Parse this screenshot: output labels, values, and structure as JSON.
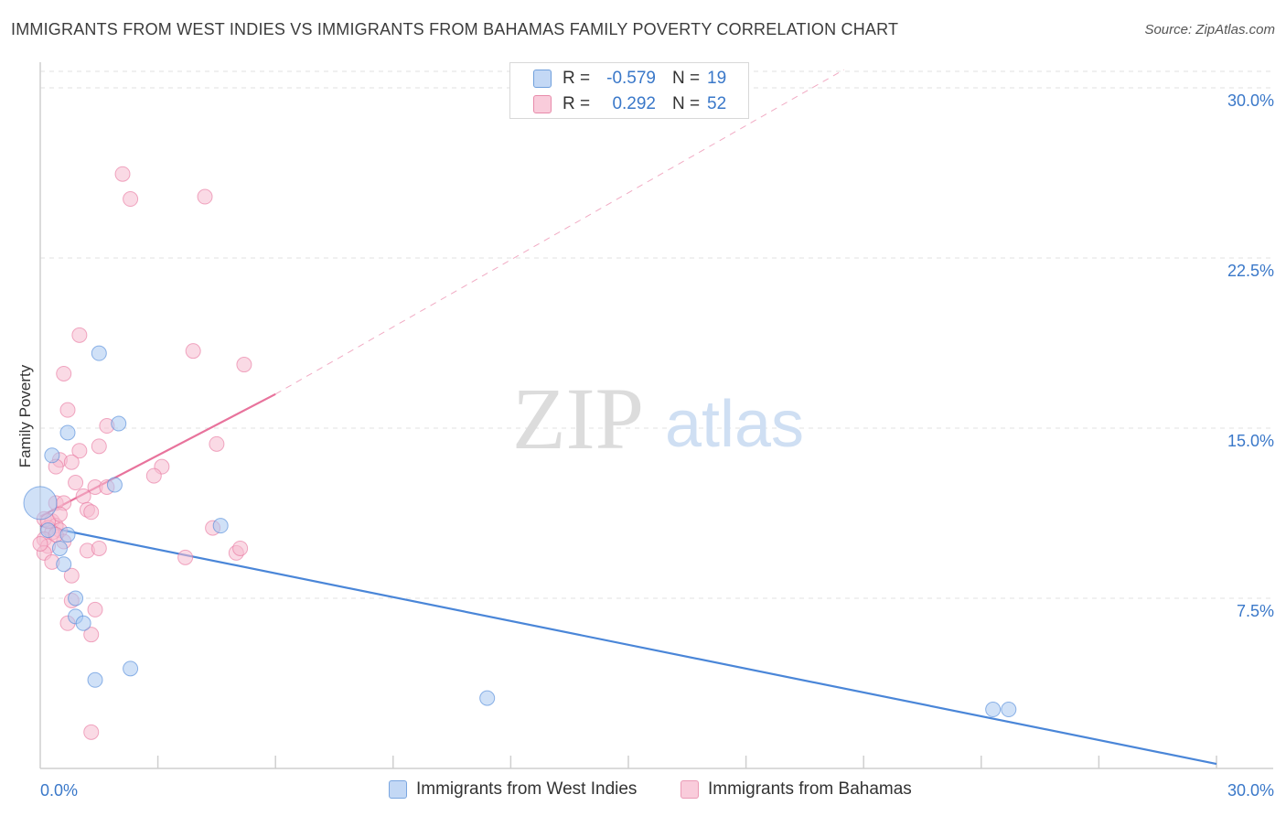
{
  "title": "IMMIGRANTS FROM WEST INDIES VS IMMIGRANTS FROM BAHAMAS FAMILY POVERTY CORRELATION CHART",
  "source": "Source: ZipAtlas.com",
  "watermark": {
    "zip": "ZIP",
    "atlas": "atlas"
  },
  "legend": {
    "r_label": "R =",
    "n_label": "N =",
    "rows": [
      {
        "r": "-0.579",
        "n": "19",
        "color": "#a9c8f0",
        "border": "#6f9fdc"
      },
      {
        "r": "0.292",
        "n": "52",
        "color": "#f6bcd0",
        "border": "#e88aaa"
      }
    ]
  },
  "bottom_legend": [
    {
      "label": "Immigrants from West Indies",
      "color": "#c3d8f5",
      "border": "#7aa6e0"
    },
    {
      "label": "Immigrants from Bahamas",
      "color": "#f9ccdb",
      "border": "#eb9bb6"
    }
  ],
  "chart_data": {
    "type": "scatter",
    "title": "IMMIGRANTS FROM WEST INDIES VS IMMIGRANTS FROM BAHAMAS FAMILY POVERTY CORRELATION CHART",
    "xlabel": "",
    "ylabel": "Family Poverty",
    "xlim": [
      0,
      30
    ],
    "ylim": [
      0,
      30
    ],
    "x_tick_labels": [
      "0.0%",
      "30.0%"
    ],
    "y_ticks": [
      7.5,
      15.0,
      22.5,
      30.0
    ],
    "y_tick_labels": [
      "7.5%",
      "15.0%",
      "22.5%",
      "30.0%"
    ],
    "grid": true,
    "series": [
      {
        "name": "Immigrants from West Indies",
        "color": "#4a86d8",
        "fill": "#a9c8f0",
        "points": [
          [
            0.0,
            11.7
          ],
          [
            0.3,
            13.8
          ],
          [
            0.7,
            14.8
          ],
          [
            1.5,
            18.3
          ],
          [
            2.0,
            15.2
          ],
          [
            1.9,
            12.5
          ],
          [
            0.7,
            10.3
          ],
          [
            0.5,
            9.7
          ],
          [
            0.6,
            9.0
          ],
          [
            0.9,
            7.5
          ],
          [
            0.9,
            6.7
          ],
          [
            1.1,
            6.4
          ],
          [
            1.4,
            3.9
          ],
          [
            2.3,
            4.4
          ],
          [
            4.6,
            10.7
          ],
          [
            11.4,
            3.1
          ],
          [
            24.3,
            2.6
          ],
          [
            24.7,
            2.6
          ],
          [
            0.2,
            10.5
          ]
        ],
        "trend": {
          "x": [
            0,
            30
          ],
          "y": [
            10.7,
            0.2
          ],
          "dashed_extension": false
        }
      },
      {
        "name": "Immigrants from Bahamas",
        "color": "#e8739c",
        "fill": "#f6bcd0",
        "points": [
          [
            2.1,
            26.2
          ],
          [
            2.3,
            25.1
          ],
          [
            4.2,
            25.2
          ],
          [
            1.0,
            19.1
          ],
          [
            3.9,
            18.4
          ],
          [
            5.2,
            17.8
          ],
          [
            0.6,
            17.4
          ],
          [
            0.7,
            15.8
          ],
          [
            1.7,
            15.1
          ],
          [
            1.5,
            14.2
          ],
          [
            1.0,
            14.0
          ],
          [
            4.5,
            14.3
          ],
          [
            0.5,
            13.6
          ],
          [
            0.8,
            13.5
          ],
          [
            0.4,
            13.3
          ],
          [
            3.1,
            13.3
          ],
          [
            2.9,
            12.9
          ],
          [
            0.9,
            12.6
          ],
          [
            1.4,
            12.4
          ],
          [
            1.7,
            12.4
          ],
          [
            1.1,
            12.0
          ],
          [
            0.4,
            11.7
          ],
          [
            0.6,
            11.7
          ],
          [
            1.2,
            11.4
          ],
          [
            1.3,
            11.3
          ],
          [
            0.1,
            11.0
          ],
          [
            0.3,
            10.9
          ],
          [
            0.4,
            10.7
          ],
          [
            0.2,
            10.6
          ],
          [
            0.5,
            10.5
          ],
          [
            0.3,
            10.4
          ],
          [
            4.4,
            10.6
          ],
          [
            0.1,
            10.1
          ],
          [
            0.6,
            10.0
          ],
          [
            0.2,
            9.8
          ],
          [
            1.2,
            9.6
          ],
          [
            1.5,
            9.7
          ],
          [
            0.1,
            9.5
          ],
          [
            5.0,
            9.5
          ],
          [
            5.1,
            9.7
          ],
          [
            3.7,
            9.3
          ],
          [
            0.3,
            9.1
          ],
          [
            0.8,
            8.5
          ],
          [
            0.8,
            7.4
          ],
          [
            1.4,
            7.0
          ],
          [
            0.7,
            6.4
          ],
          [
            1.3,
            5.9
          ],
          [
            1.3,
            1.6
          ],
          [
            0.4,
            10.3
          ],
          [
            0.2,
            10.9
          ],
          [
            0.5,
            11.2
          ],
          [
            0.0,
            9.9
          ]
        ],
        "trend": {
          "x": [
            0,
            6
          ],
          "y": [
            11.1,
            16.5
          ],
          "dashed_extension": true,
          "dashed_to": [
            20.5,
            30.8
          ]
        }
      }
    ]
  }
}
